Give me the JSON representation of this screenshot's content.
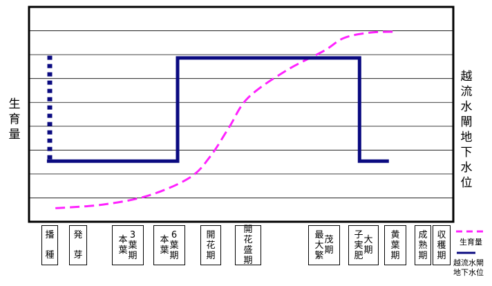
{
  "chart_data": {
    "type": "line",
    "title": "",
    "ylabel_left": "生育量",
    "ylabel_right": "越流水閘地下水位",
    "stages": [
      {
        "id": "sowing",
        "columns": [
          "播",
          "種"
        ],
        "label": "播種"
      },
      {
        "id": "germination",
        "columns": [
          "発",
          "芽"
        ],
        "label": "発芽"
      },
      {
        "id": "leaf3",
        "columns": [
          "3葉期",
          "本葉"
        ],
        "label": "本葉3葉期"
      },
      {
        "id": "leaf6",
        "columns": [
          "6葉期",
          "本葉"
        ],
        "label": "本葉6葉期"
      },
      {
        "id": "flowering-start",
        "columns": [
          "開花期"
        ],
        "label": "開花期"
      },
      {
        "id": "full-bloom",
        "columns": [
          "開花盛期"
        ],
        "label": "開花盛期"
      },
      {
        "id": "max-growth",
        "columns": [
          "茂期",
          "最大繁"
        ],
        "label": "最大繁茂期"
      },
      {
        "id": "grain-fill",
        "columns": [
          "大期",
          "子実肥"
        ],
        "label": "子実肥大期"
      },
      {
        "id": "yellow-leaf",
        "columns": [
          "黄葉期"
        ],
        "label": "黄葉期"
      },
      {
        "id": "maturity",
        "columns": [
          "成熟期"
        ],
        "label": "成熟期"
      },
      {
        "id": "harvest",
        "columns": [
          "収穫期"
        ],
        "label": "収穫期"
      }
    ],
    "series": [
      {
        "name": "生育量",
        "color": "#ff22ff",
        "style": "dashed",
        "points": [
          [
            0.2,
            0.01
          ],
          [
            1.5,
            0.03
          ],
          [
            2.5,
            0.08
          ],
          [
            3.5,
            0.18
          ],
          [
            4.0,
            0.3
          ],
          [
            4.5,
            0.46
          ],
          [
            5.0,
            0.62
          ],
          [
            5.5,
            0.77
          ],
          [
            6.0,
            0.88
          ],
          [
            6.5,
            0.95
          ],
          [
            7.2,
            0.98
          ],
          [
            8.0,
            0.985
          ]
        ]
      },
      {
        "name": "越流水閘地下水位",
        "color": "#0a0a80",
        "style": "solid",
        "points": [
          [
            -0.1,
            0.27
          ],
          [
            3.2,
            0.27
          ],
          [
            3.2,
            0.84
          ],
          [
            6.9,
            0.84
          ],
          [
            6.9,
            0.27
          ],
          [
            7.8,
            0.27
          ]
        ]
      },
      {
        "name": "",
        "color": "#0a0a80",
        "style": "dotted",
        "points": [
          [
            0.0,
            0.28
          ],
          [
            0.0,
            0.86
          ]
        ]
      }
    ],
    "grid": true,
    "legend_position": "bottom-right"
  },
  "legend": [
    {
      "label": "生育量",
      "style": "dashed",
      "color": "#ff22ff"
    },
    {
      "label": "越流水閘地下水位",
      "lines": [
        "越流水閘",
        "地下水位"
      ],
      "style": "solid",
      "color": "#0a0a80"
    }
  ]
}
